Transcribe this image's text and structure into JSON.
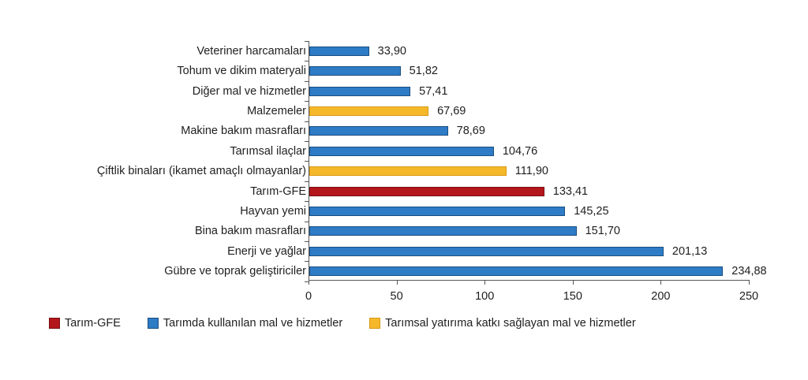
{
  "chart_data": {
    "type": "bar",
    "orientation": "horizontal",
    "title": "",
    "xlabel": "",
    "ylabel": "",
    "xlim": [
      0,
      250
    ],
    "x_ticks": [
      "0",
      "50",
      "100",
      "150",
      "200",
      "250"
    ],
    "grid": false,
    "legend_position": "bottom",
    "categories": [
      "Veteriner harcamaları",
      "Tohum ve dikim materyali",
      "Diğer mal ve hizmetler",
      "Malzemeler",
      "Makine bakım masrafları",
      "Tarımsal ilaçlar",
      "Çiftlik binaları (ikamet amaçlı olmayanlar)",
      "Tarım-GFE",
      "Hayvan yemi",
      "Bina bakım masrafları",
      "Enerji ve yağlar",
      "Gübre ve toprak geliştiriciler"
    ],
    "values": [
      33.9,
      51.82,
      57.41,
      67.69,
      78.69,
      104.76,
      111.9,
      133.41,
      145.25,
      151.7,
      201.13,
      234.88
    ],
    "value_labels": [
      "33,90",
      "51,82",
      "57,41",
      "67,69",
      "78,69",
      "104,76",
      "111,90",
      "133,41",
      "145,25",
      "151,70",
      "201,13",
      "234,88"
    ],
    "series_membership": [
      "blue",
      "blue",
      "blue",
      "yellow",
      "blue",
      "blue",
      "yellow",
      "red",
      "blue",
      "blue",
      "blue",
      "blue"
    ],
    "legend": [
      {
        "key": "red",
        "label": "Tarım-GFE",
        "color": "#b3161b"
      },
      {
        "key": "blue",
        "label": "Tarımda kullanılan mal ve hizmetler",
        "color": "#2e7bc6"
      },
      {
        "key": "yellow",
        "label": "Tarımsal yatırıma katkı sağlayan mal ve hizmetler",
        "color": "#f5b82a"
      }
    ]
  }
}
